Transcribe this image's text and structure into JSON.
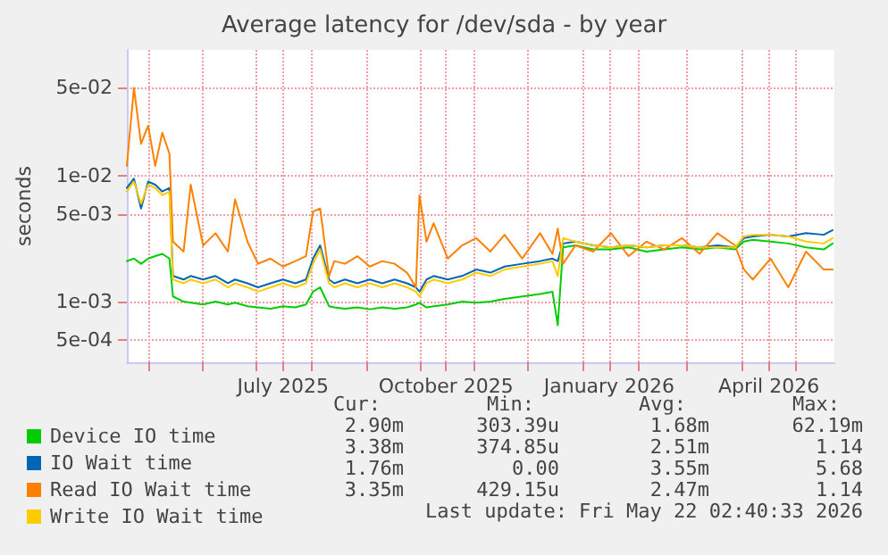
{
  "chart_data": {
    "type": "line",
    "title": "Average latency for /dev/sda - by year",
    "ylabel": "seconds",
    "log": "y",
    "grid": true,
    "legend": "bottom left",
    "marker": "none",
    "line_style": "solid",
    "xlim": [
      "2025-04-19",
      "2026-05-23"
    ],
    "xticks": [
      {
        "value": "2025-05-01",
        "label": null
      },
      {
        "value": "2025-06-01",
        "label": null
      },
      {
        "value": "2025-07-01",
        "label": null
      },
      {
        "value": "2025-07-16",
        "label": "July 2025"
      },
      {
        "value": "2025-08-01",
        "label": null
      },
      {
        "value": "2025-09-01",
        "label": null
      },
      {
        "value": "2025-10-01",
        "label": null
      },
      {
        "value": "2025-10-16",
        "label": "October 2025"
      },
      {
        "value": "2025-11-01",
        "label": null
      },
      {
        "value": "2025-12-01",
        "label": null
      },
      {
        "value": "2026-01-01",
        "label": null
      },
      {
        "value": "2026-01-16",
        "label": "January 2026"
      },
      {
        "value": "2026-02-01",
        "label": null
      },
      {
        "value": "2026-03-01",
        "label": null
      },
      {
        "value": "2026-04-01",
        "label": null
      },
      {
        "value": "2026-04-16",
        "label": "April 2026"
      },
      {
        "value": "2026-05-01",
        "label": null
      }
    ],
    "ylim": [
      0.00033,
      0.1
    ],
    "yticks": [
      {
        "value": 0.0005,
        "label": "5e-04"
      },
      {
        "value": 0.001,
        "label": "1e-03"
      },
      {
        "value": 0.005,
        "label": "5e-03"
      },
      {
        "value": 0.01,
        "label": "1e-02"
      },
      {
        "value": 0.05,
        "label": "5e-02"
      }
    ],
    "x": [
      "2025-04-19",
      "2025-04-23",
      "2025-04-27",
      "2025-05-01",
      "2025-05-05",
      "2025-05-09",
      "2025-05-13",
      "2025-05-15",
      "2025-05-21",
      "2025-05-25",
      "2025-06-01",
      "2025-06-08",
      "2025-06-15",
      "2025-06-19",
      "2025-06-26",
      "2025-07-02",
      "2025-07-09",
      "2025-07-16",
      "2025-07-23",
      "2025-07-29",
      "2025-08-02",
      "2025-08-06",
      "2025-08-11",
      "2025-08-14",
      "2025-08-20",
      "2025-08-27",
      "2025-09-03",
      "2025-09-10",
      "2025-09-17",
      "2025-09-24",
      "2025-09-29",
      "2025-10-01",
      "2025-10-05",
      "2025-10-09",
      "2025-10-17",
      "2025-10-25",
      "2025-11-02",
      "2025-11-10",
      "2025-11-18",
      "2025-11-28",
      "2025-12-08",
      "2025-12-15",
      "2025-12-18",
      "2025-12-21",
      "2025-12-28",
      "2026-01-07",
      "2026-01-17",
      "2026-01-27",
      "2026-02-06",
      "2026-02-16",
      "2026-02-26",
      "2026-03-08",
      "2026-03-18",
      "2026-03-28",
      "2026-04-02",
      "2026-04-07",
      "2026-04-17",
      "2026-04-27",
      "2026-05-07",
      "2026-05-17",
      "2026-05-22"
    ],
    "series": [
      {
        "name": "Device IO time",
        "color": "#00cc00",
        "values": [
          0.0021,
          0.0022,
          0.002,
          0.0022,
          0.0023,
          0.0024,
          0.0022,
          0.0011,
          0.001,
          0.00098,
          0.00095,
          0.001,
          0.00095,
          0.00098,
          0.00092,
          0.0009,
          0.00088,
          0.00092,
          0.0009,
          0.00095,
          0.0012,
          0.0013,
          0.00092,
          0.0009,
          0.00088,
          0.0009,
          0.00087,
          0.0009,
          0.00088,
          0.0009,
          0.00095,
          0.00098,
          0.0009,
          0.00092,
          0.00095,
          0.001,
          0.00098,
          0.001,
          0.00105,
          0.0011,
          0.00115,
          0.0012,
          0.00065,
          0.0027,
          0.0028,
          0.0026,
          0.0026,
          0.0027,
          0.0025,
          0.0026,
          0.0027,
          0.0026,
          0.0027,
          0.0026,
          0.003,
          0.0031,
          0.003,
          0.0029,
          0.0027,
          0.0026,
          0.0029
        ]
      },
      {
        "name": "IO Wait time",
        "color": "#0066b3",
        "values": [
          0.008,
          0.0095,
          0.0055,
          0.009,
          0.0085,
          0.0075,
          0.008,
          0.0016,
          0.0015,
          0.0016,
          0.0015,
          0.0016,
          0.0014,
          0.0015,
          0.0014,
          0.0013,
          0.0014,
          0.0015,
          0.0014,
          0.0015,
          0.0022,
          0.0028,
          0.0015,
          0.0014,
          0.0015,
          0.0014,
          0.0015,
          0.0014,
          0.0015,
          0.0014,
          0.0013,
          0.0012,
          0.0015,
          0.0016,
          0.0015,
          0.0016,
          0.0018,
          0.0017,
          0.0019,
          0.002,
          0.0021,
          0.0022,
          0.0021,
          0.0029,
          0.003,
          0.0028,
          0.0027,
          0.0028,
          0.0027,
          0.0028,
          0.0028,
          0.0027,
          0.0028,
          0.0027,
          0.0032,
          0.0033,
          0.0034,
          0.0033,
          0.0035,
          0.0034,
          0.0037
        ]
      },
      {
        "name": "Read IO Wait time",
        "color": "#ff8000",
        "values": [
          0.012,
          0.05,
          0.018,
          0.025,
          0.012,
          0.022,
          0.015,
          0.003,
          0.0025,
          0.0085,
          0.0028,
          0.0035,
          0.0025,
          0.0065,
          0.003,
          0.002,
          0.0022,
          0.0019,
          0.0021,
          0.0023,
          0.0052,
          0.0055,
          0.0016,
          0.0021,
          0.002,
          0.0023,
          0.0019,
          0.0021,
          0.002,
          0.0017,
          0.0013,
          0.007,
          0.003,
          0.0042,
          0.0022,
          0.0028,
          0.0032,
          0.0025,
          0.0034,
          0.0022,
          0.0035,
          0.0024,
          0.0038,
          0.002,
          0.0028,
          0.0025,
          0.0035,
          0.0023,
          0.003,
          0.0026,
          0.0032,
          0.0024,
          0.0035,
          0.0028,
          0.0018,
          0.0015,
          0.0022,
          0.0013,
          0.0025,
          0.0018,
          0.0018
        ]
      },
      {
        "name": "Write IO Wait time",
        "color": "#ffcc00",
        "values": [
          0.0075,
          0.009,
          0.006,
          0.0085,
          0.008,
          0.007,
          0.0075,
          0.0015,
          0.0014,
          0.0015,
          0.0014,
          0.0015,
          0.0013,
          0.0014,
          0.0013,
          0.0012,
          0.0013,
          0.0014,
          0.0013,
          0.0014,
          0.002,
          0.0026,
          0.0014,
          0.0013,
          0.0014,
          0.0013,
          0.0014,
          0.0013,
          0.0014,
          0.0013,
          0.0012,
          0.0011,
          0.0014,
          0.0015,
          0.0014,
          0.0015,
          0.0017,
          0.0016,
          0.0018,
          0.0019,
          0.002,
          0.0021,
          0.0016,
          0.0032,
          0.003,
          0.0028,
          0.0027,
          0.0028,
          0.0027,
          0.0028,
          0.0028,
          0.0027,
          0.0027,
          0.0027,
          0.0033,
          0.0034,
          0.0034,
          0.0033,
          0.003,
          0.0029,
          0.0032
        ]
      }
    ],
    "annotations": [
      "Cur:",
      "Min:",
      "Avg:",
      "Max:",
      "2.90m",
      "303.39u",
      "1.68m",
      "62.19m",
      "3.38m",
      "374.85u",
      "2.51m",
      "1.14",
      "1.76m",
      "0.00",
      "3.55m",
      "5.68",
      "3.35m",
      "429.15u",
      "2.47m",
      "1.14",
      "Last update: Fri May 22 02:40:33 2026"
    ]
  }
}
